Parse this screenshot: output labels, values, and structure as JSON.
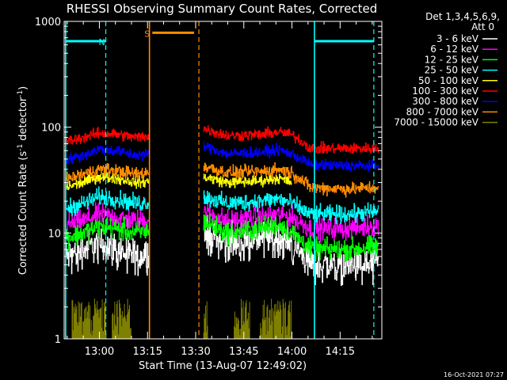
{
  "chart_data": {
    "type": "line",
    "title": "RHESSI Observing Summary Count Rates, Corrected",
    "xlabel": "Start Time (13-Aug-07 12:49:02)",
    "ylabel_main": "Corrected Count Rate (s",
    "ylabel_sup1": "-1",
    "ylabel_mid": " detector",
    "ylabel_sup2": "-1",
    "ylabel_end": ")",
    "y_scale": "log",
    "ylim": [
      1,
      1000
    ],
    "xlim_min": [
      49.03,
      148
    ],
    "x_ticks": [
      {
        "t": 60,
        "label": "13:00"
      },
      {
        "t": 75,
        "label": "13:15"
      },
      {
        "t": 90,
        "label": "13:30"
      },
      {
        "t": 105,
        "label": "13:45"
      },
      {
        "t": 120,
        "label": "14:00"
      },
      {
        "t": 135,
        "label": "14:15"
      }
    ],
    "y_ticks": [
      {
        "v": 1,
        "label": "1"
      },
      {
        "v": 10,
        "label": "10"
      },
      {
        "v": 100,
        "label": "100"
      },
      {
        "v": 1000,
        "label": "1000"
      }
    ],
    "legend": {
      "placement": "right",
      "header1": "Det 1,3,4,5,6,9,",
      "header2": "Att 0"
    },
    "data_gap": [
      75.5,
      92.5
    ],
    "series": [
      {
        "name": "3 - 6 keV",
        "color": "#ffffff",
        "noise": 0.08,
        "values": [
          [
            49.5,
            6
          ],
          [
            55,
            7
          ],
          [
            60,
            8
          ],
          [
            65,
            7
          ],
          [
            71.5,
            6
          ],
          [
            92.5,
            10
          ],
          [
            100,
            8
          ],
          [
            110,
            9
          ],
          [
            116,
            9
          ],
          [
            120,
            8
          ],
          [
            124,
            6
          ],
          [
            126,
            5
          ],
          [
            138,
            5
          ],
          [
            147,
            5
          ]
        ]
      },
      {
        "name": "6 - 12 keV",
        "color": "#ff00ff",
        "noise": 0.05,
        "values": [
          [
            49.5,
            12
          ],
          [
            55,
            13
          ],
          [
            60,
            15
          ],
          [
            65,
            14
          ],
          [
            71.5,
            13
          ],
          [
            92.5,
            16
          ],
          [
            100,
            13
          ],
          [
            110,
            14
          ],
          [
            116,
            15
          ],
          [
            120,
            14
          ],
          [
            124,
            12
          ],
          [
            126,
            11
          ],
          [
            138,
            11
          ],
          [
            147,
            12
          ]
        ]
      },
      {
        "name": "12 - 25 keV",
        "color": "#00ff00",
        "noise": 0.05,
        "values": [
          [
            49.5,
            9
          ],
          [
            55,
            10
          ],
          [
            60,
            11.5
          ],
          [
            65,
            11
          ],
          [
            71.5,
            10
          ],
          [
            92.5,
            13
          ],
          [
            100,
            10
          ],
          [
            110,
            11
          ],
          [
            116,
            12
          ],
          [
            120,
            10
          ],
          [
            124,
            8
          ],
          [
            126,
            7
          ],
          [
            138,
            7
          ],
          [
            147,
            7.5
          ]
        ]
      },
      {
        "name": "25 - 50 keV",
        "color": "#00ffff",
        "noise": 0.04,
        "values": [
          [
            49.5,
            17
          ],
          [
            55,
            19
          ],
          [
            60,
            22
          ],
          [
            65,
            21
          ],
          [
            71.5,
            19
          ],
          [
            92.5,
            22
          ],
          [
            100,
            19
          ],
          [
            110,
            20
          ],
          [
            116,
            21
          ],
          [
            120,
            19
          ],
          [
            124,
            16
          ],
          [
            126,
            15
          ],
          [
            138,
            15
          ],
          [
            147,
            16
          ]
        ]
      },
      {
        "name": "50 - 100 keV",
        "color": "#ffff00",
        "noise": 0.025,
        "values": [
          [
            49.5,
            27
          ],
          [
            55,
            30
          ],
          [
            60,
            34
          ],
          [
            65,
            33
          ],
          [
            71.5,
            30
          ],
          [
            92.5,
            34
          ],
          [
            100,
            30
          ],
          [
            110,
            31
          ],
          [
            116,
            33
          ],
          [
            120,
            30
          ]
        ]
      },
      {
        "name": "100 - 300 keV",
        "color": "#ff0000",
        "noise": 0.025,
        "values": [
          [
            49.5,
            73
          ],
          [
            55,
            80
          ],
          [
            60,
            88
          ],
          [
            65,
            86
          ],
          [
            71.5,
            80
          ],
          [
            92.5,
            97
          ],
          [
            100,
            83
          ],
          [
            110,
            85
          ],
          [
            116,
            90
          ],
          [
            120,
            85
          ],
          [
            124,
            70
          ],
          [
            126,
            63
          ],
          [
            138,
            63
          ],
          [
            147,
            63
          ]
        ]
      },
      {
        "name": "300 - 800 keV",
        "color": "#0000ff",
        "noise": 0.025,
        "values": [
          [
            49.5,
            49
          ],
          [
            55,
            54
          ],
          [
            60,
            62
          ],
          [
            65,
            60
          ],
          [
            71.5,
            54
          ],
          [
            92.5,
            67
          ],
          [
            100,
            56
          ],
          [
            110,
            58
          ],
          [
            116,
            61
          ],
          [
            120,
            56
          ],
          [
            124,
            48
          ],
          [
            126,
            44
          ],
          [
            138,
            43
          ],
          [
            147,
            43
          ]
        ]
      },
      {
        "name": "800 - 7000 keV",
        "color": "#ff8c00",
        "noise": 0.03,
        "values": [
          [
            49.5,
            32
          ],
          [
            55,
            36
          ],
          [
            60,
            40
          ],
          [
            65,
            39
          ],
          [
            71.5,
            36
          ],
          [
            92.5,
            43
          ],
          [
            100,
            37
          ],
          [
            110,
            38
          ],
          [
            116,
            40
          ],
          [
            120,
            37
          ],
          [
            124,
            30
          ],
          [
            126,
            27
          ],
          [
            138,
            26
          ],
          [
            147,
            27
          ]
        ]
      },
      {
        "name": "7000 - 15000 keV",
        "color": "#808000",
        "noise": 0,
        "values": [
          [
            49.5,
            1
          ],
          [
            147,
            1
          ]
        ]
      }
    ],
    "bursts": [
      {
        "name": "7000 - 15000 keV",
        "color": "#808000",
        "ranges": [
          [
            51.5,
            62.3
          ],
          [
            64,
            70
          ],
          [
            92.5,
            93.8
          ],
          [
            102,
            107
          ],
          [
            110,
            120
          ]
        ],
        "max": 2.4
      }
    ],
    "markers": [
      {
        "type": "solid",
        "color": "#00ffff",
        "t": 49.5
      },
      {
        "type": "dashed",
        "color": "#00ffff",
        "t": 62
      },
      {
        "type": "solid",
        "color": "#ff8c00",
        "t": 75.6
      },
      {
        "type": "dashed",
        "color": "#ff8c00",
        "t": 91
      },
      {
        "type": "solid",
        "color": "#00ffff",
        "t": 127
      },
      {
        "type": "dashed",
        "color": "#00ffff",
        "t": 145.5
      }
    ],
    "flags": [
      {
        "color": "#00ffff",
        "t0": 49.5,
        "t1": 62,
        "value": 650,
        "label": "N"
      },
      {
        "color": "#ff8c00",
        "t0": 76.5,
        "t1": 89.5,
        "value": 780,
        "label": "S"
      },
      {
        "color": "#00ffff",
        "t0": 127,
        "t1": 145.5,
        "value": 650,
        "label": ""
      }
    ]
  },
  "footer": {
    "timestamp": "16-Oct-2021 07:27"
  }
}
